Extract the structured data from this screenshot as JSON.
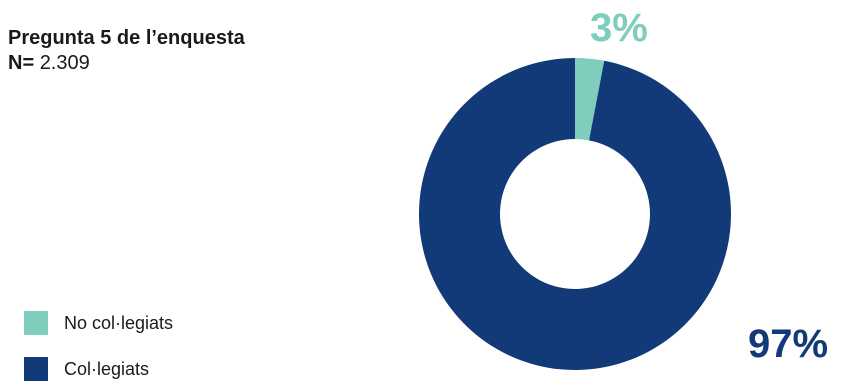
{
  "title": "Pregunta 5 de l’enquesta",
  "sample": {
    "label": "N=",
    "value": "2.309"
  },
  "colors": {
    "no_colegiats": "#7ecdbd",
    "colegiats": "#133a78"
  },
  "chart_data": {
    "type": "pie",
    "donut": true,
    "title": "Pregunta 5 de l’enquesta",
    "categories": [
      "No col·legiats",
      "Col·legiats"
    ],
    "values": [
      3,
      97
    ],
    "data_labels": [
      "3%",
      "97%"
    ],
    "legend_position": "bottom-left"
  }
}
